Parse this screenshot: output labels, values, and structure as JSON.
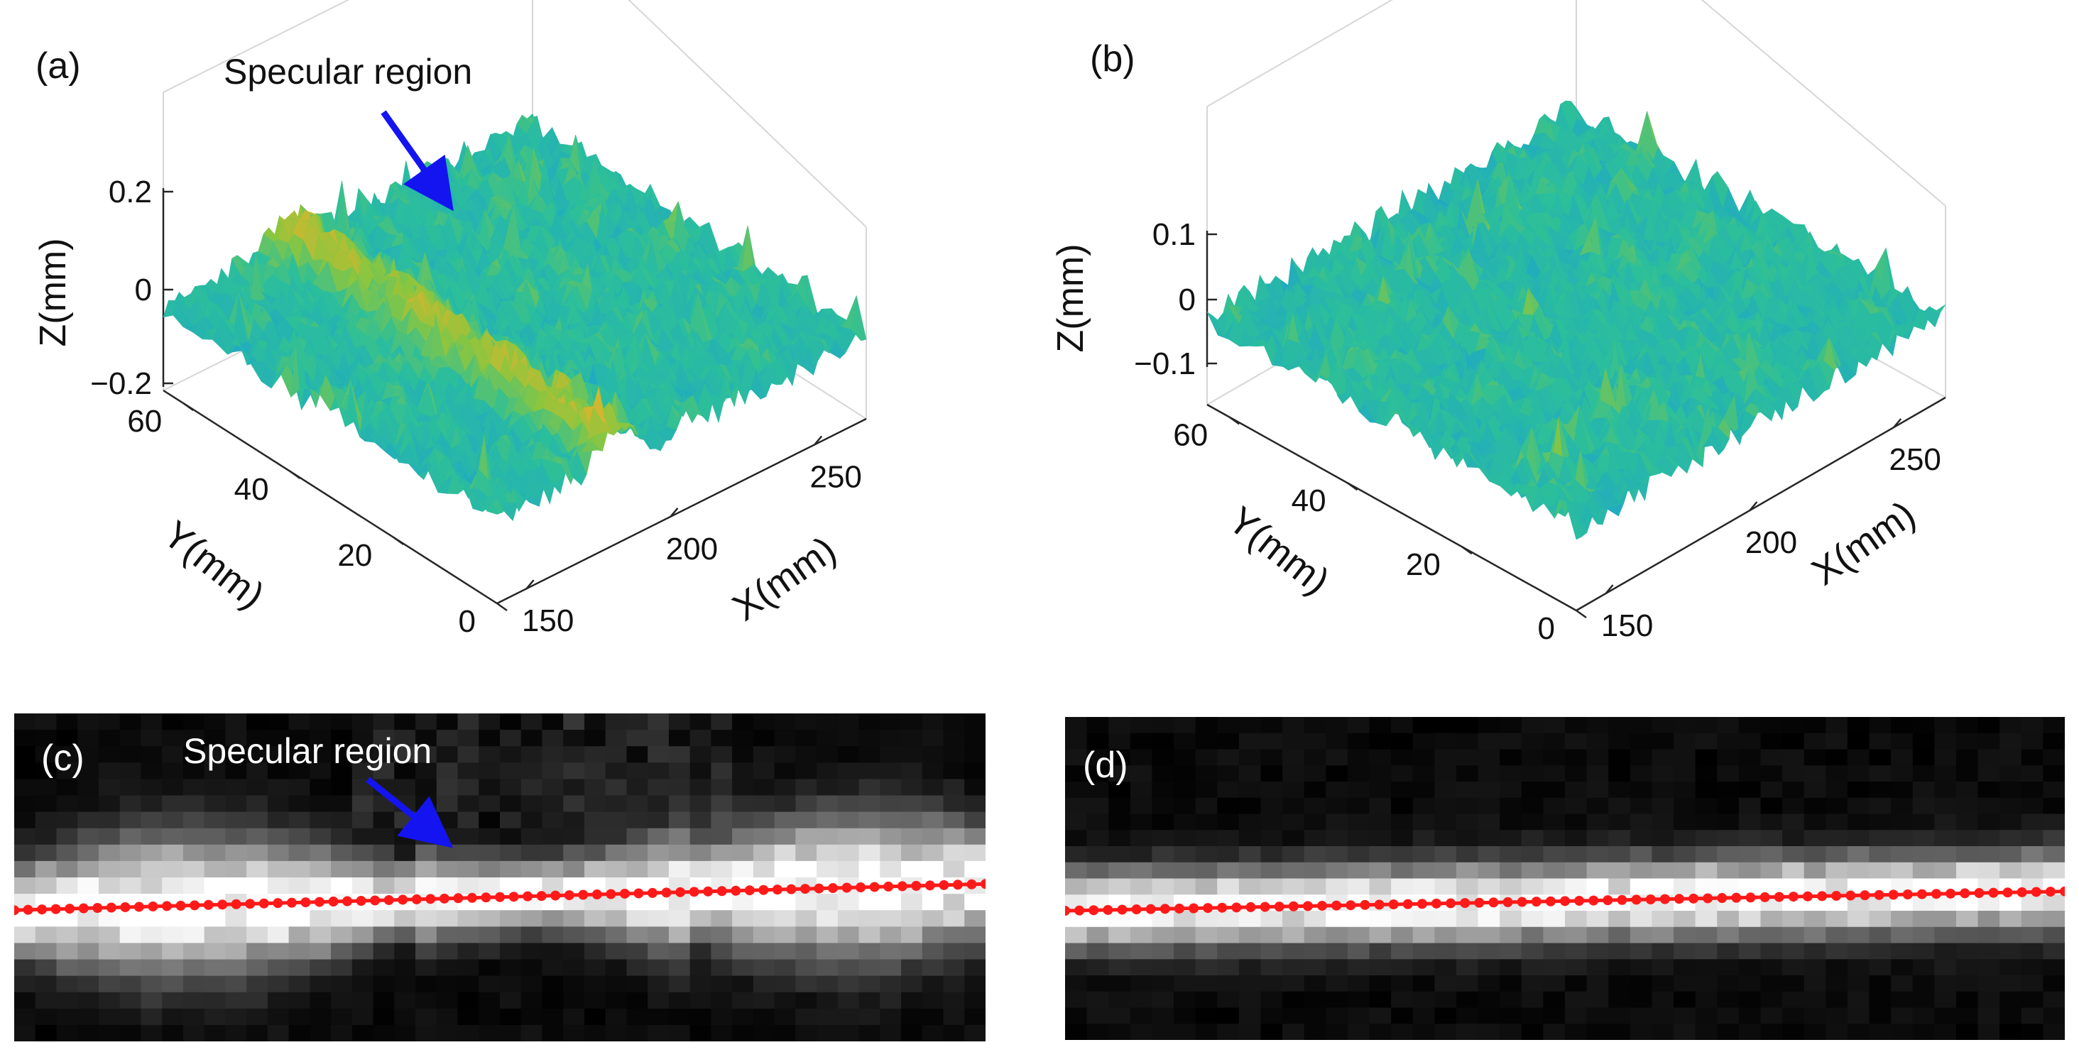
{
  "chart_data": [
    {
      "panel": "(a)",
      "type": "surface3d",
      "annotation": "Specular region",
      "xlabel": "X(mm)",
      "ylabel": "Y(mm)",
      "zlabel": "Z(mm)",
      "xticks": [
        "150",
        "200",
        "250"
      ],
      "yticks": [
        "0",
        "20",
        "40",
        "60"
      ],
      "zticks": [
        "0.2",
        "0",
        "-0.2"
      ],
      "xlim": [
        140,
        270
      ],
      "ylim": [
        0,
        65
      ],
      "zlim": [
        -0.2,
        0.2
      ],
      "specular_band_x": 190,
      "colormap": [
        "#3b6fd8",
        "#1fa7c8",
        "#2cbf9a",
        "#8bc63e",
        "#e8b22a"
      ]
    },
    {
      "panel": "(b)",
      "type": "surface3d",
      "xlabel": "X(mm)",
      "ylabel": "Y(mm)",
      "zlabel": "Z(mm)",
      "xticks": [
        "150",
        "200",
        "250"
      ],
      "yticks": [
        "0",
        "20",
        "40",
        "60"
      ],
      "zticks": [
        "0.1",
        "0",
        "-0.1"
      ],
      "xlim": [
        140,
        270
      ],
      "ylim": [
        0,
        65
      ],
      "zlim": [
        -0.1,
        0.1
      ],
      "colormap": [
        "#3b6fd8",
        "#1fa7c8",
        "#2cbf9a",
        "#8bc63e",
        "#e8b22a"
      ]
    },
    {
      "panel": "(c)",
      "type": "heatmap",
      "annotation": "Specular region",
      "colormap": "gray",
      "line_color": "#ff1a1a",
      "centerline_start_frac": 0.6,
      "centerline_end_frac": 0.52
    },
    {
      "panel": "(d)",
      "type": "heatmap",
      "colormap": "gray",
      "line_color": "#ff1a1a",
      "centerline_start_frac": 0.6,
      "centerline_end_frac": 0.54
    }
  ]
}
